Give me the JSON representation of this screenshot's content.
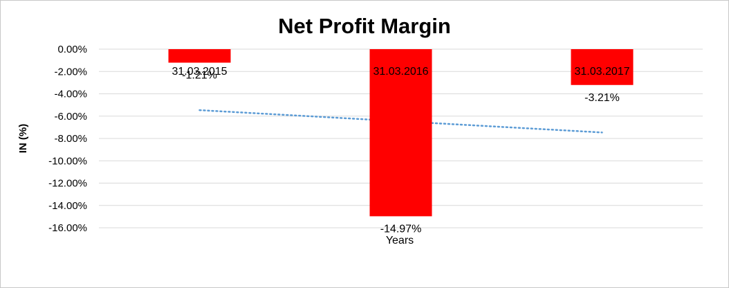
{
  "chart_data": {
    "type": "bar",
    "title": "Net Profit Margin",
    "xlabel": "Years",
    "ylabel": "IN (%)",
    "categories": [
      "31.03.2015",
      "31.03.2016",
      "31.03.2017"
    ],
    "values": [
      -1.21,
      -14.97,
      -3.21
    ],
    "data_labels": [
      "-1.21%",
      "-14.97%",
      "-3.21%"
    ],
    "ylim": [
      -16,
      0
    ],
    "yticks": [
      0,
      -2,
      -4,
      -6,
      -8,
      -10,
      -12,
      -14,
      -16
    ],
    "ytick_labels": [
      "0.00%",
      "-2.00%",
      "-4.00%",
      "-6.00%",
      "-8.00%",
      "-10.00%",
      "-12.00%",
      "-14.00%",
      "-16.00%"
    ],
    "grid": true,
    "trendline": "linear dotted",
    "colors": {
      "bar": "#ff0000",
      "trendline": "#5b9bd5",
      "grid": "#d9d9d9"
    }
  }
}
